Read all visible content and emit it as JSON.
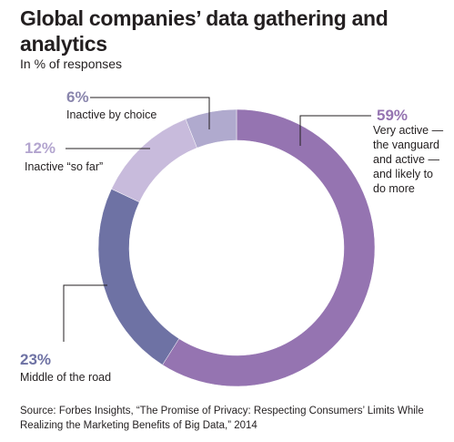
{
  "chart_data": {
    "type": "pie",
    "title": "Global companies’ data gathering and analytics",
    "subtitle": "In % of responses",
    "categories": [
      "Very active — the vanguard and active — and likely to do more",
      "Middle of the road",
      "Inactive “so far”",
      "Inactive by choice"
    ],
    "values": [
      59,
      23,
      12,
      6
    ],
    "value_labels": [
      "59%",
      "23%",
      "12%",
      "6%"
    ],
    "label_lines": [
      [
        "Very active —",
        "the vanguard",
        "and active —",
        "and likely to",
        "do more"
      ],
      [
        "Middle of the road"
      ],
      [
        "Inactive “so far”"
      ],
      [
        "Inactive by choice"
      ]
    ],
    "colors": [
      "#9574b1",
      "#6e72a4",
      "#c8bbdc",
      "#b0aace"
    ],
    "donut": true
  },
  "source": "Source: Forbes Insights, “The Promise of Privacy: Respecting Consumers’ Limits While Realizing the Marketing Benefits of Big Data,” 2014"
}
